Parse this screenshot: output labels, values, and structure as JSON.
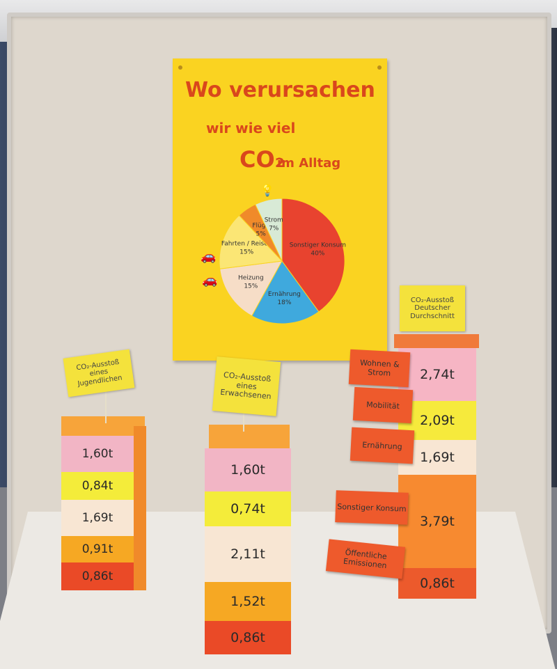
{
  "poster": {
    "title_line1": "Wo verursachen",
    "title_line2": "wir wie viel",
    "title_co2": "CO₂",
    "title_line3": "im Alltag",
    "pie": [
      {
        "label": "Sonstiger Konsum",
        "value": 40,
        "value_text": "40%",
        "color": "#e8432f"
      },
      {
        "label": "Ernährung",
        "value": 18,
        "value_text": "18%",
        "color": "#3fa9dd"
      },
      {
        "label": "Heizung",
        "value": 15,
        "value_text": "15%",
        "color": "#f6ddc7"
      },
      {
        "label": "Fahrten / Reisen",
        "value": 15,
        "value_text": "15%",
        "color": "#fbe675"
      },
      {
        "label": "Flüge",
        "value": 5,
        "value_text": "5%",
        "color": "#f08a2a"
      },
      {
        "label": "Strom",
        "value": 7,
        "value_text": "7%",
        "color": "#d8ead6"
      }
    ]
  },
  "stacks": {
    "youth": {
      "sign": [
        "CO₂-Ausstoß",
        "eines",
        "Jugendlichen"
      ],
      "bands": [
        {
          "text": "1,60t",
          "color": "#f2b5c5"
        },
        {
          "text": "0,84t",
          "color": "#f4ec3a"
        },
        {
          "text": "1,69t",
          "color": "#f8e6d3"
        },
        {
          "text": "0,91t",
          "color": "#f6a823"
        },
        {
          "text": "0,86t",
          "color": "#ea4a27"
        }
      ]
    },
    "adult": {
      "sign": [
        "CO₂-Ausstoß",
        "eines",
        "Erwachsenen"
      ],
      "bands": [
        {
          "text": "1,60t",
          "color": "#f2b5c5"
        },
        {
          "text": "0,74t",
          "color": "#f4ec3a"
        },
        {
          "text": "2,11t",
          "color": "#f8e6d3"
        },
        {
          "text": "1,52t",
          "color": "#f6a823"
        },
        {
          "text": "0,86t",
          "color": "#ea4a27"
        }
      ]
    },
    "german": {
      "sign": [
        "CO₂-Ausstoß",
        "Deutscher",
        "Durchschnitt"
      ],
      "bands": [
        {
          "text": "2,74t",
          "color": "#f6b5c4"
        },
        {
          "text": "2,09t",
          "color": "#f6ea3c"
        },
        {
          "text": "1,69t",
          "color": "#f8e6d3"
        },
        {
          "text": "3,79t",
          "color": "#f78a30"
        },
        {
          "text": "0,86t",
          "color": "#ec5a2c"
        }
      ],
      "tags": [
        "Wohnen & Strom",
        "Mobilität",
        "Ernährung",
        "Sonstiger Konsum",
        "Öffentliche Emissionen"
      ]
    }
  }
}
